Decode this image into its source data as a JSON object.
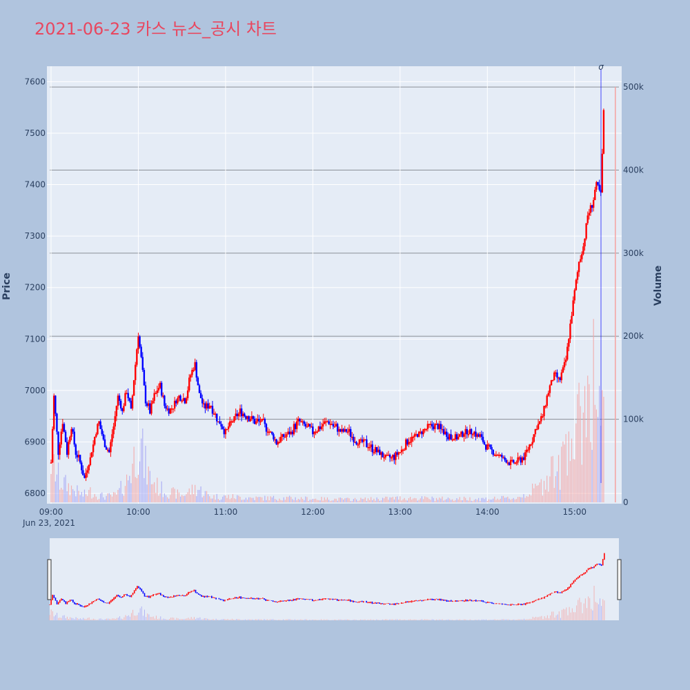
{
  "title": "2021-06-23 카스 뉴스_공시 차트",
  "colors": {
    "background": "#b0c4de",
    "plot_bg": "#e5ecf6",
    "title": "#e8475f",
    "up": "#ff0000",
    "down": "#0000ff",
    "vol_up": "#f4a6a6",
    "vol_down": "#a6a6f4"
  },
  "chart_data": {
    "type": "candlestick",
    "y_axis_title": "Price",
    "y2_axis_title": "Volume",
    "price_ticks": [
      "6800",
      "6900",
      "7000",
      "7100",
      "7200",
      "7300",
      "7400",
      "7500",
      "7600"
    ],
    "volume_ticks": [
      "0",
      "100k",
      "200k",
      "300k",
      "400k",
      "500k"
    ],
    "time_ticks": [
      "09:00",
      "10:00",
      "11:00",
      "12:00",
      "13:00",
      "14:00",
      "15:00"
    ],
    "date_label": "Jun 23, 2021",
    "annotation": "σ",
    "ylim": [
      6780,
      7630
    ],
    "y2lim": [
      0,
      525000
    ],
    "x_range": [
      "09:00",
      "15:30"
    ],
    "price_path": [
      [
        "09:00",
        6860
      ],
      [
        "09:02",
        6990
      ],
      [
        "09:05",
        6880
      ],
      [
        "09:08",
        6940
      ],
      [
        "09:11",
        6880
      ],
      [
        "09:14",
        6930
      ],
      [
        "09:17",
        6880
      ],
      [
        "09:20",
        6860
      ],
      [
        "09:23",
        6830
      ],
      [
        "09:27",
        6870
      ],
      [
        "09:30",
        6910
      ],
      [
        "09:33",
        6940
      ],
      [
        "09:36",
        6900
      ],
      [
        "09:40",
        6880
      ],
      [
        "09:43",
        6930
      ],
      [
        "09:46",
        6990
      ],
      [
        "09:49",
        6960
      ],
      [
        "09:52",
        7000
      ],
      [
        "09:55",
        6960
      ],
      [
        "09:58",
        7050
      ],
      [
        "10:00",
        7110
      ],
      [
        "10:02",
        7060
      ],
      [
        "10:05",
        6980
      ],
      [
        "10:08",
        6960
      ],
      [
        "10:11",
        6990
      ],
      [
        "10:15",
        7010
      ],
      [
        "10:18",
        6970
      ],
      [
        "10:21",
        6960
      ],
      [
        "10:24",
        6970
      ],
      [
        "10:28",
        6990
      ],
      [
        "10:32",
        6980
      ],
      [
        "10:36",
        7030
      ],
      [
        "10:39",
        7050
      ],
      [
        "10:42",
        6990
      ],
      [
        "10:45",
        6970
      ],
      [
        "10:50",
        6970
      ],
      [
        "10:55",
        6940
      ],
      [
        "11:00",
        6920
      ],
      [
        "11:05",
        6940
      ],
      [
        "11:10",
        6960
      ],
      [
        "11:15",
        6950
      ],
      [
        "11:20",
        6940
      ],
      [
        "11:25",
        6940
      ],
      [
        "11:30",
        6920
      ],
      [
        "11:35",
        6900
      ],
      [
        "11:40",
        6910
      ],
      [
        "11:45",
        6920
      ],
      [
        "11:50",
        6940
      ],
      [
        "11:55",
        6930
      ],
      [
        "12:00",
        6920
      ],
      [
        "12:05",
        6930
      ],
      [
        "12:10",
        6940
      ],
      [
        "12:15",
        6930
      ],
      [
        "12:20",
        6920
      ],
      [
        "12:25",
        6920
      ],
      [
        "12:30",
        6900
      ],
      [
        "12:35",
        6900
      ],
      [
        "12:40",
        6890
      ],
      [
        "12:45",
        6880
      ],
      [
        "12:50",
        6870
      ],
      [
        "12:55",
        6870
      ],
      [
        "13:00",
        6880
      ],
      [
        "13:05",
        6900
      ],
      [
        "13:10",
        6910
      ],
      [
        "13:15",
        6920
      ],
      [
        "13:20",
        6930
      ],
      [
        "13:25",
        6930
      ],
      [
        "13:30",
        6920
      ],
      [
        "13:35",
        6910
      ],
      [
        "13:40",
        6910
      ],
      [
        "13:45",
        6920
      ],
      [
        "13:50",
        6920
      ],
      [
        "13:55",
        6910
      ],
      [
        "14:00",
        6890
      ],
      [
        "14:05",
        6880
      ],
      [
        "14:10",
        6870
      ],
      [
        "14:15",
        6860
      ],
      [
        "14:20",
        6860
      ],
      [
        "14:25",
        6870
      ],
      [
        "14:30",
        6900
      ],
      [
        "14:34",
        6930
      ],
      [
        "14:38",
        6950
      ],
      [
        "14:42",
        7000
      ],
      [
        "14:46",
        7030
      ],
      [
        "14:50",
        7020
      ],
      [
        "14:54",
        7060
      ],
      [
        "14:57",
        7130
      ],
      [
        "15:00",
        7190
      ],
      [
        "15:03",
        7250
      ],
      [
        "15:06",
        7280
      ],
      [
        "15:09",
        7340
      ],
      [
        "15:12",
        7360
      ],
      [
        "15:15",
        7400
      ],
      [
        "15:18",
        7380
      ],
      [
        "15:20",
        7540
      ]
    ],
    "volume_path": [
      [
        "09:00",
        60000
      ],
      [
        "09:03",
        45000
      ],
      [
        "09:06",
        30000
      ],
      [
        "09:10",
        25000
      ],
      [
        "09:14",
        20000
      ],
      [
        "09:18",
        15000
      ],
      [
        "09:22",
        10000
      ],
      [
        "09:27",
        15000
      ],
      [
        "09:32",
        10000
      ],
      [
        "09:38",
        8000
      ],
      [
        "09:45",
        10000
      ],
      [
        "09:52",
        30000
      ],
      [
        "09:57",
        60000
      ],
      [
        "10:00",
        100000
      ],
      [
        "10:04",
        55000
      ],
      [
        "10:08",
        35000
      ],
      [
        "10:14",
        20000
      ],
      [
        "10:20",
        15000
      ],
      [
        "10:30",
        10000
      ],
      [
        "10:40",
        20000
      ],
      [
        "10:50",
        8000
      ],
      [
        "11:00",
        8000
      ],
      [
        "11:20",
        6000
      ],
      [
        "11:40",
        6000
      ],
      [
        "12:00",
        5000
      ],
      [
        "12:30",
        4000
      ],
      [
        "13:00",
        6000
      ],
      [
        "13:30",
        5000
      ],
      [
        "14:00",
        5000
      ],
      [
        "14:20",
        6000
      ],
      [
        "14:30",
        15000
      ],
      [
        "14:38",
        25000
      ],
      [
        "14:44",
        50000
      ],
      [
        "14:50",
        40000
      ],
      [
        "14:56",
        120000
      ],
      [
        "15:00",
        70000
      ],
      [
        "15:04",
        120000
      ],
      [
        "15:08",
        150000
      ],
      [
        "15:12",
        190000
      ],
      [
        "15:16",
        130000
      ],
      [
        "15:20",
        100000
      ]
    ],
    "final_volume": 500000,
    "final_volume_time": "15:28"
  }
}
